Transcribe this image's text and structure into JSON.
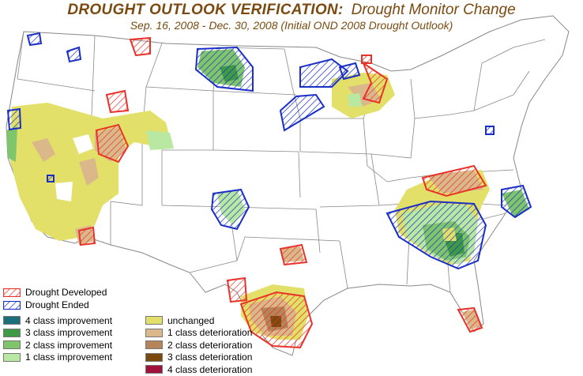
{
  "title": {
    "main": "DROUGHT OUTLOOK VERIFICATION:",
    "secondary": "Drought Monitor Change",
    "subtitle": "Sep. 16, 2008 - Dec. 30, 2008 (Initial OND 2008 Drought Outlook)"
  },
  "legend": {
    "hatch": [
      {
        "label": "Drought Developed",
        "color": "#e8322a"
      },
      {
        "label": "Drought Ended",
        "color": "#1a2fc8"
      }
    ],
    "improvement": [
      {
        "label": "4 class improvement",
        "color": "#1b6e7a"
      },
      {
        "label": "3 class improvement",
        "color": "#3f9a45"
      },
      {
        "label": "2 class improvement",
        "color": "#7fc56c"
      },
      {
        "label": "1 class improvement",
        "color": "#b8e8a2"
      }
    ],
    "deterioration": [
      {
        "label": "unchanged",
        "color": "#e3e06a"
      },
      {
        "label": "1 class deterioration",
        "color": "#dbb88a"
      },
      {
        "label": "2 class deterioration",
        "color": "#b58458"
      },
      {
        "label": "3 class deterioration",
        "color": "#7a4a0c"
      },
      {
        "label": "4 class deterioration",
        "color": "#a0123a"
      }
    ]
  },
  "colors": {
    "state_lines": "#888888",
    "title_text": "#7a4a10"
  }
}
